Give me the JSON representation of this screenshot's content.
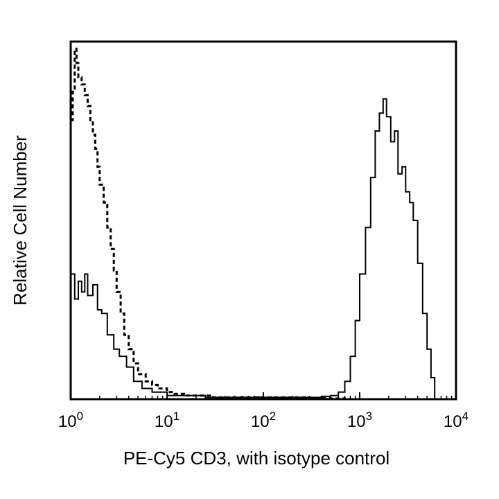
{
  "chart_data": {
    "type": "line",
    "title": "",
    "xlabel": "PE-Cy5 CD3, with isotype control",
    "ylabel": "Relative Cell Number",
    "x_scale": "log",
    "xlim": [
      1,
      10000
    ],
    "ylim": [
      0,
      100
    ],
    "grid": false,
    "legend": "none",
    "x_ticks": [
      {
        "value": 1,
        "base": "10",
        "exp": "0"
      },
      {
        "value": 10,
        "base": "10",
        "exp": "1"
      },
      {
        "value": 100,
        "base": "10",
        "exp": "2"
      },
      {
        "value": 1000,
        "base": "10",
        "exp": "3"
      },
      {
        "value": 10000,
        "base": "10",
        "exp": "4"
      }
    ],
    "series": [
      {
        "style": "solid",
        "color": "#000000",
        "x": [
          1.0,
          1.1,
          1.2,
          1.3,
          1.4,
          1.5,
          1.7,
          1.9,
          2.1,
          2.4,
          2.8,
          3.2,
          3.8,
          4.5,
          5.5,
          7,
          10,
          15,
          25,
          50,
          100,
          200,
          300,
          400,
          500,
          600,
          700,
          800,
          900,
          1000,
          1150,
          1300,
          1450,
          1600,
          1750,
          1900,
          2100,
          2300,
          2500,
          2750,
          3000,
          3300,
          3600,
          4000,
          4500,
          5000,
          5500,
          6000
        ],
        "y": [
          35,
          28,
          33,
          30,
          35,
          29,
          32,
          25,
          24,
          18,
          14,
          12,
          9,
          5,
          3,
          2,
          1,
          1,
          0.5,
          0.5,
          0.5,
          0.5,
          0.5,
          0.8,
          1,
          2,
          5,
          12,
          22,
          35,
          48,
          62,
          75,
          80,
          84,
          79,
          72,
          75,
          63,
          65,
          58,
          55,
          50,
          38,
          24,
          14,
          6,
          0
        ]
      },
      {
        "style": "dashed",
        "color": "#000000",
        "x": [
          1.0,
          1.05,
          1.1,
          1.15,
          1.2,
          1.3,
          1.4,
          1.5,
          1.6,
          1.7,
          1.8,
          1.9,
          2.0,
          2.2,
          2.4,
          2.6,
          2.8,
          3.0,
          3.3,
          3.6,
          4.0,
          4.5,
          5.0,
          6,
          7,
          8,
          10,
          12,
          15,
          20,
          30,
          50,
          100,
          200,
          300,
          400,
          500,
          600,
          700
        ],
        "y": [
          78,
          86,
          98,
          94,
          90,
          88,
          85,
          82,
          78,
          74,
          70,
          65,
          60,
          55,
          48,
          42,
          36,
          30,
          24,
          18,
          14,
          10,
          7,
          5,
          4,
          3,
          2,
          1.5,
          1,
          1,
          0.5,
          0.5,
          0.5,
          0.5,
          0.3,
          0.3,
          0.2,
          0.2,
          0
        ]
      }
    ]
  }
}
